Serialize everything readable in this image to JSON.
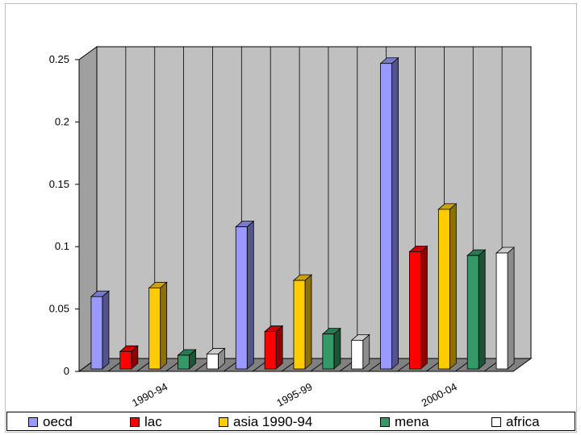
{
  "chart_data": {
    "type": "bar",
    "categories": [
      "1990-94",
      "1995-99",
      "2000-04"
    ],
    "series": [
      {
        "name": "oecd",
        "color": "#9999ff",
        "values": [
          0.058,
          0.114,
          0.245
        ]
      },
      {
        "name": "lac",
        "color": "#ff0000",
        "values": [
          0.014,
          0.03,
          0.094
        ]
      },
      {
        "name": "asia 1990-94",
        "color": "#ffcc00",
        "values": [
          0.065,
          0.071,
          0.128
        ]
      },
      {
        "name": "mena",
        "color": "#339966",
        "values": [
          0.011,
          0.028,
          0.091
        ]
      },
      {
        "name": "africa",
        "color": "#ffffff",
        "values": [
          0.012,
          0.023,
          0.093
        ]
      }
    ],
    "y_ticks": [
      "0",
      "0.05",
      "0.1",
      "0.15",
      "0.2",
      "0.25"
    ],
    "ylim": [
      0,
      0.25
    ],
    "grid": "vertical",
    "wall_color": "#c0c0c0",
    "floor_color": "#808080",
    "legend_position": "bottom",
    "title": "",
    "xlabel": "",
    "ylabel": ""
  }
}
